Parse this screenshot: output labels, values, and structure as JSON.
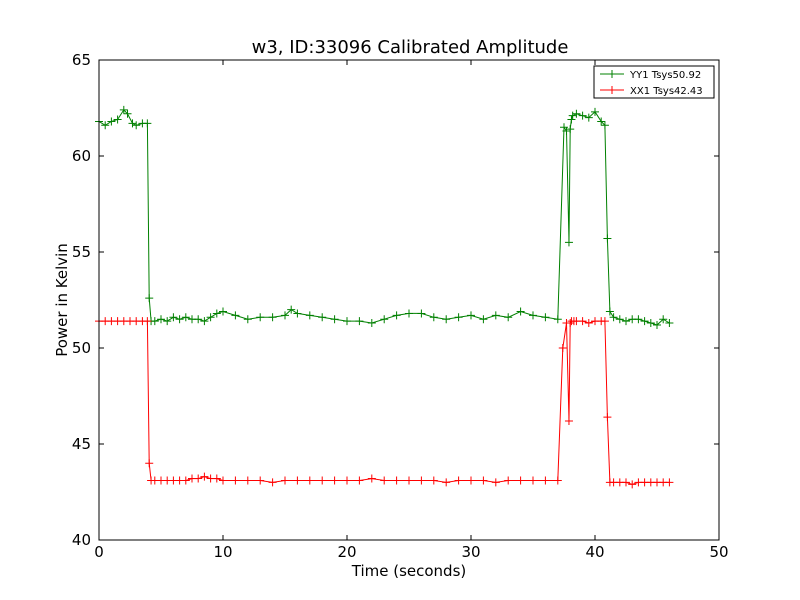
{
  "chart_data": {
    "type": "line",
    "title": "w3, ID:33096 Calibrated Amplitude",
    "xlabel": "Time (seconds)",
    "ylabel": "Power in Kelvin",
    "xlim": [
      0,
      50
    ],
    "ylim": [
      40,
      65
    ],
    "xticks": [
      0,
      10,
      20,
      30,
      40,
      50
    ],
    "yticks": [
      40,
      45,
      50,
      55,
      60,
      65
    ],
    "grid": false,
    "legend_position": "top-right",
    "series": [
      {
        "name": "YY1 Tsys50.92",
        "color": "#008000",
        "marker": "+",
        "x": [
          0,
          0.5,
          1.0,
          1.5,
          2.0,
          2.3,
          2.7,
          3.0,
          3.5,
          3.9,
          4.05,
          4.2,
          4.5,
          5.0,
          5.5,
          6.0,
          6.5,
          7.0,
          7.5,
          8.0,
          8.5,
          9.0,
          9.5,
          10.0,
          11.0,
          12.0,
          13.0,
          14.0,
          15.0,
          15.5,
          16.0,
          17.0,
          18.0,
          19.0,
          20.0,
          21.0,
          22.0,
          23.0,
          24.0,
          25.0,
          26.0,
          27.0,
          28.0,
          29.0,
          30.0,
          31.0,
          32.0,
          33.0,
          34.0,
          35.0,
          36.0,
          37.0,
          37.5,
          37.7,
          37.9,
          38.0,
          38.1,
          38.2,
          38.5,
          39.0,
          39.5,
          40.0,
          40.5,
          40.8,
          41.0,
          41.2,
          41.5,
          42.0,
          42.5,
          43.0,
          43.5,
          44.0,
          44.5,
          45.0,
          45.5,
          46.0
        ],
        "y": [
          61.8,
          61.6,
          61.8,
          61.9,
          62.4,
          62.2,
          61.7,
          61.6,
          61.7,
          61.7,
          52.6,
          51.4,
          51.4,
          51.5,
          51.4,
          51.6,
          51.5,
          51.6,
          51.5,
          51.5,
          51.4,
          51.6,
          51.8,
          51.9,
          51.7,
          51.5,
          51.6,
          51.6,
          51.7,
          52.0,
          51.8,
          51.7,
          51.6,
          51.5,
          51.4,
          51.4,
          51.3,
          51.5,
          51.7,
          51.8,
          51.8,
          51.6,
          51.5,
          51.6,
          51.7,
          51.5,
          51.7,
          51.6,
          51.9,
          51.7,
          51.6,
          51.5,
          61.5,
          61.3,
          55.5,
          61.4,
          61.9,
          62.1,
          62.2,
          62.1,
          62.0,
          62.3,
          61.8,
          61.6,
          55.7,
          51.9,
          51.6,
          51.5,
          51.4,
          51.5,
          51.5,
          51.4,
          51.3,
          51.2,
          51.5,
          51.3
        ]
      },
      {
        "name": "XX1 Tsys42.43",
        "color": "#ff0000",
        "marker": "+",
        "x": [
          0,
          0.5,
          1.0,
          1.5,
          2.0,
          2.5,
          3.0,
          3.5,
          3.9,
          4.05,
          4.2,
          4.5,
          5.0,
          5.5,
          6.0,
          6.5,
          7.0,
          7.5,
          8.0,
          8.5,
          9.0,
          9.5,
          10.0,
          11.0,
          12.0,
          13.0,
          14.0,
          15.0,
          16.0,
          17.0,
          18.0,
          19.0,
          20.0,
          21.0,
          22.0,
          23.0,
          24.0,
          25.0,
          26.0,
          27.0,
          28.0,
          29.0,
          30.0,
          31.0,
          32.0,
          33.0,
          34.0,
          35.0,
          36.0,
          37.0,
          37.4,
          37.7,
          37.9,
          38.0,
          38.1,
          38.3,
          38.5,
          39.0,
          39.5,
          40.0,
          40.5,
          40.8,
          41.0,
          41.2,
          41.5,
          42.0,
          42.5,
          43.0,
          43.5,
          44.0,
          44.5,
          45.0,
          45.5,
          46.0
        ],
        "y": [
          51.4,
          51.4,
          51.4,
          51.4,
          51.4,
          51.4,
          51.4,
          51.4,
          51.4,
          44.0,
          43.1,
          43.1,
          43.1,
          43.1,
          43.1,
          43.1,
          43.1,
          43.2,
          43.2,
          43.3,
          43.2,
          43.2,
          43.1,
          43.1,
          43.1,
          43.1,
          43.0,
          43.1,
          43.1,
          43.1,
          43.1,
          43.1,
          43.1,
          43.1,
          43.2,
          43.1,
          43.1,
          43.1,
          43.1,
          43.1,
          43.0,
          43.1,
          43.1,
          43.1,
          43.0,
          43.1,
          43.1,
          43.1,
          43.1,
          43.1,
          50.0,
          51.3,
          46.2,
          51.3,
          51.4,
          51.4,
          51.4,
          51.4,
          51.3,
          51.4,
          51.4,
          51.4,
          46.4,
          43.0,
          43.0,
          43.0,
          43.0,
          42.9,
          43.0,
          43.0,
          43.0,
          43.0,
          43.0,
          43.0
        ]
      }
    ]
  }
}
